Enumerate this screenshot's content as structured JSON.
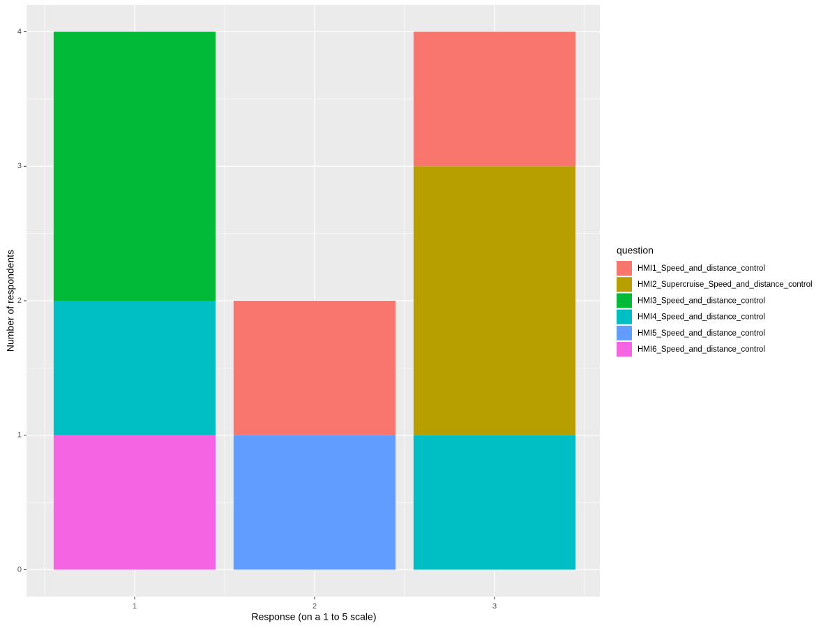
{
  "chart_data": {
    "type": "stacked-bar",
    "x_label": "Response (on a 1 to 5 scale)",
    "y_label": "Number of respondents",
    "legend_title": "question",
    "legend_position": "right",
    "categories": [
      "1",
      "2",
      "3"
    ],
    "series": [
      {
        "name": "HMI1_Speed_and_distance_control",
        "color": "#F8766D",
        "values": [
          0,
          1,
          1
        ]
      },
      {
        "name": "HMI2_Supercruise_Speed_and_distance_control",
        "color": "#B79F00",
        "values": [
          0,
          0,
          2
        ]
      },
      {
        "name": "HMI3_Speed_and_distance_control",
        "color": "#00BA38",
        "values": [
          2,
          0,
          0
        ]
      },
      {
        "name": "HMI4_Speed_and_distance_control",
        "color": "#00BFC4",
        "values": [
          1,
          0,
          1
        ]
      },
      {
        "name": "HMI5_Speed_and_distance_control",
        "color": "#619CFF",
        "values": [
          0,
          1,
          0
        ]
      },
      {
        "name": "HMI6_Speed_and_distance_control",
        "color": "#F564E3",
        "values": [
          1,
          0,
          0
        ]
      }
    ],
    "ylim": [
      -0.2,
      4.2
    ],
    "yticks": [
      0,
      1,
      2,
      3,
      4
    ],
    "grid": true
  }
}
